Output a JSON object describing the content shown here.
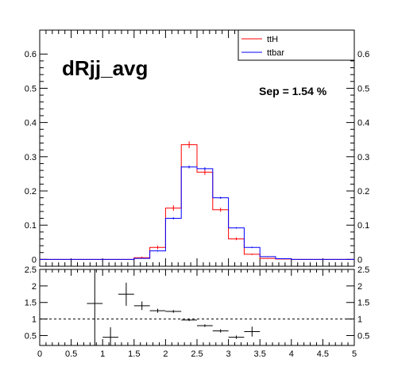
{
  "chart_data": [
    {
      "type": "line",
      "title": "dRjj_avg",
      "annotation": "Sep = 1.54 %",
      "xlim": [
        0,
        5
      ],
      "ylim": [
        -0.02,
        0.67
      ],
      "x_ticks": [
        "0",
        "0.5",
        "1",
        "1.5",
        "2",
        "2.5",
        "3",
        "3.5",
        "4",
        "4.5",
        "5"
      ],
      "y_ticks": [
        "0",
        "0.1",
        "0.2",
        "0.3",
        "0.4",
        "0.5",
        "0.6"
      ],
      "y_tick_values": [
        0,
        0.1,
        0.2,
        0.3,
        0.4,
        0.5,
        0.6
      ],
      "bin_edges": [
        0,
        0.25,
        0.5,
        0.75,
        1.0,
        1.25,
        1.5,
        1.75,
        2.0,
        2.25,
        2.5,
        2.75,
        3.0,
        3.25,
        3.5,
        3.75,
        4.0,
        4.25,
        4.5,
        4.75,
        5.0
      ],
      "legend_position": "top-right",
      "series": [
        {
          "name": "ttH",
          "color": "#ff0000",
          "values": [
            0,
            0,
            0,
            0,
            0,
            0,
            0.005,
            0.035,
            0.15,
            0.335,
            0.255,
            0.145,
            0.06,
            0.015,
            0.003,
            0.001,
            0,
            0,
            0,
            0
          ],
          "errors": [
            0,
            0,
            0,
            0,
            0,
            0,
            0.003,
            0.005,
            0.008,
            0.01,
            0.008,
            0.006,
            0.004,
            0.002,
            0.001,
            0.001,
            0,
            0,
            0,
            0
          ]
        },
        {
          "name": "ttbar",
          "color": "#0000ff",
          "values": [
            0,
            0,
            0,
            0,
            0,
            0,
            0.003,
            0.025,
            0.12,
            0.27,
            0.265,
            0.18,
            0.092,
            0.035,
            0.008,
            0.002,
            0,
            0,
            0,
            0
          ],
          "errors": [
            0,
            0,
            0,
            0,
            0,
            0,
            0.001,
            0.002,
            0.003,
            0.004,
            0.004,
            0.003,
            0.002,
            0.002,
            0.001,
            0.001,
            0,
            0,
            0,
            0
          ]
        }
      ]
    },
    {
      "type": "scatter",
      "ylim": [
        0.2,
        2.5
      ],
      "reference_line": 1,
      "x_ticks": [
        "0",
        "0.5",
        "1",
        "1.5",
        "2",
        "2.5",
        "3",
        "3.5",
        "4",
        "4.5",
        "5"
      ],
      "y_ticks": [
        "0.5",
        "1",
        "1.5",
        "2",
        "2.5"
      ],
      "y_tick_values": [
        0.5,
        1,
        1.5,
        2,
        2.5
      ],
      "points": [
        {
          "x": 0.875,
          "y": 1.47,
          "xerr": 0.125,
          "yerr": 1.4
        },
        {
          "x": 1.125,
          "y": 0.45,
          "xerr": 0.125,
          "yerr": 0.3
        },
        {
          "x": 1.375,
          "y": 1.75,
          "xerr": 0.125,
          "yerr": 0.35
        },
        {
          "x": 1.625,
          "y": 1.4,
          "xerr": 0.125,
          "yerr": 0.13
        },
        {
          "x": 1.875,
          "y": 1.25,
          "xerr": 0.125,
          "yerr": 0.06
        },
        {
          "x": 2.125,
          "y": 1.23,
          "xerr": 0.125,
          "yerr": 0.04
        },
        {
          "x": 2.375,
          "y": 0.97,
          "xerr": 0.125,
          "yerr": 0.03
        },
        {
          "x": 2.625,
          "y": 0.8,
          "xerr": 0.125,
          "yerr": 0.04
        },
        {
          "x": 2.875,
          "y": 0.64,
          "xerr": 0.125,
          "yerr": 0.05
        },
        {
          "x": 3.125,
          "y": 0.45,
          "xerr": 0.125,
          "yerr": 0.05
        },
        {
          "x": 3.375,
          "y": 0.62,
          "xerr": 0.125,
          "yerr": 0.15
        }
      ]
    }
  ]
}
